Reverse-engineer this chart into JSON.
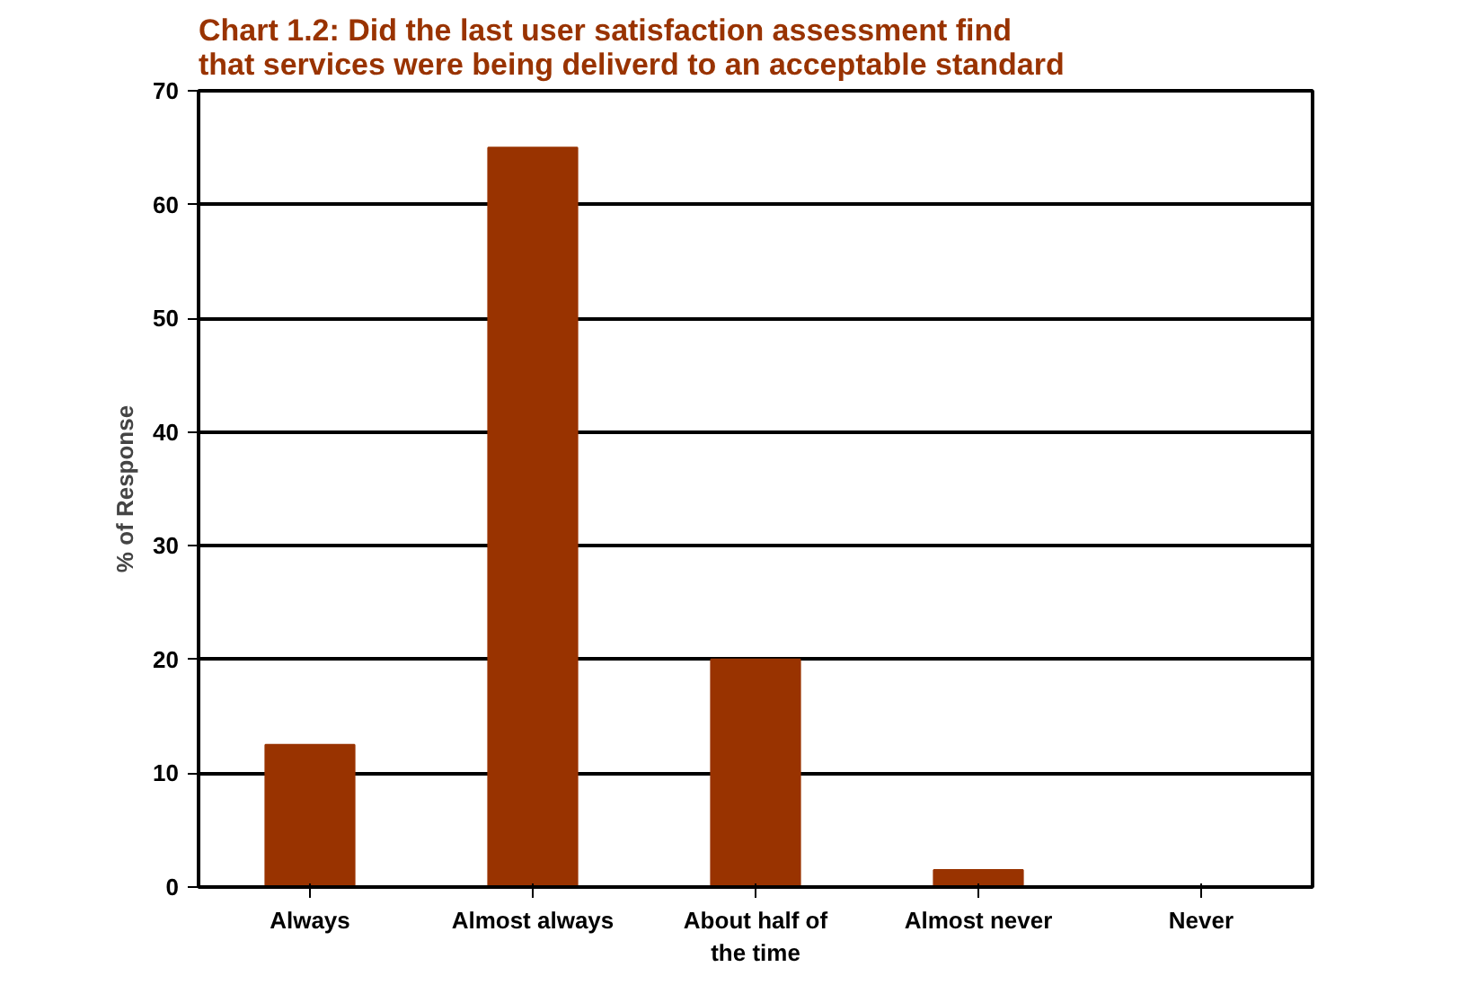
{
  "chart_data": {
    "type": "bar",
    "title": "Chart 1.2:  Did the last user satisfaction assessment find that services were being deliverd to an acceptable standard",
    "categories": [
      "Always",
      "Almost always",
      "About half of the time",
      "Almost never",
      "Never"
    ],
    "values": [
      12.5,
      65,
      20,
      1.5,
      0
    ],
    "color": "#993300",
    "ylabel": "% of Response",
    "ylim": [
      0,
      70
    ],
    "yticks": [
      0,
      10,
      20,
      30,
      40,
      50,
      60,
      70
    ],
    "grid": "y"
  }
}
